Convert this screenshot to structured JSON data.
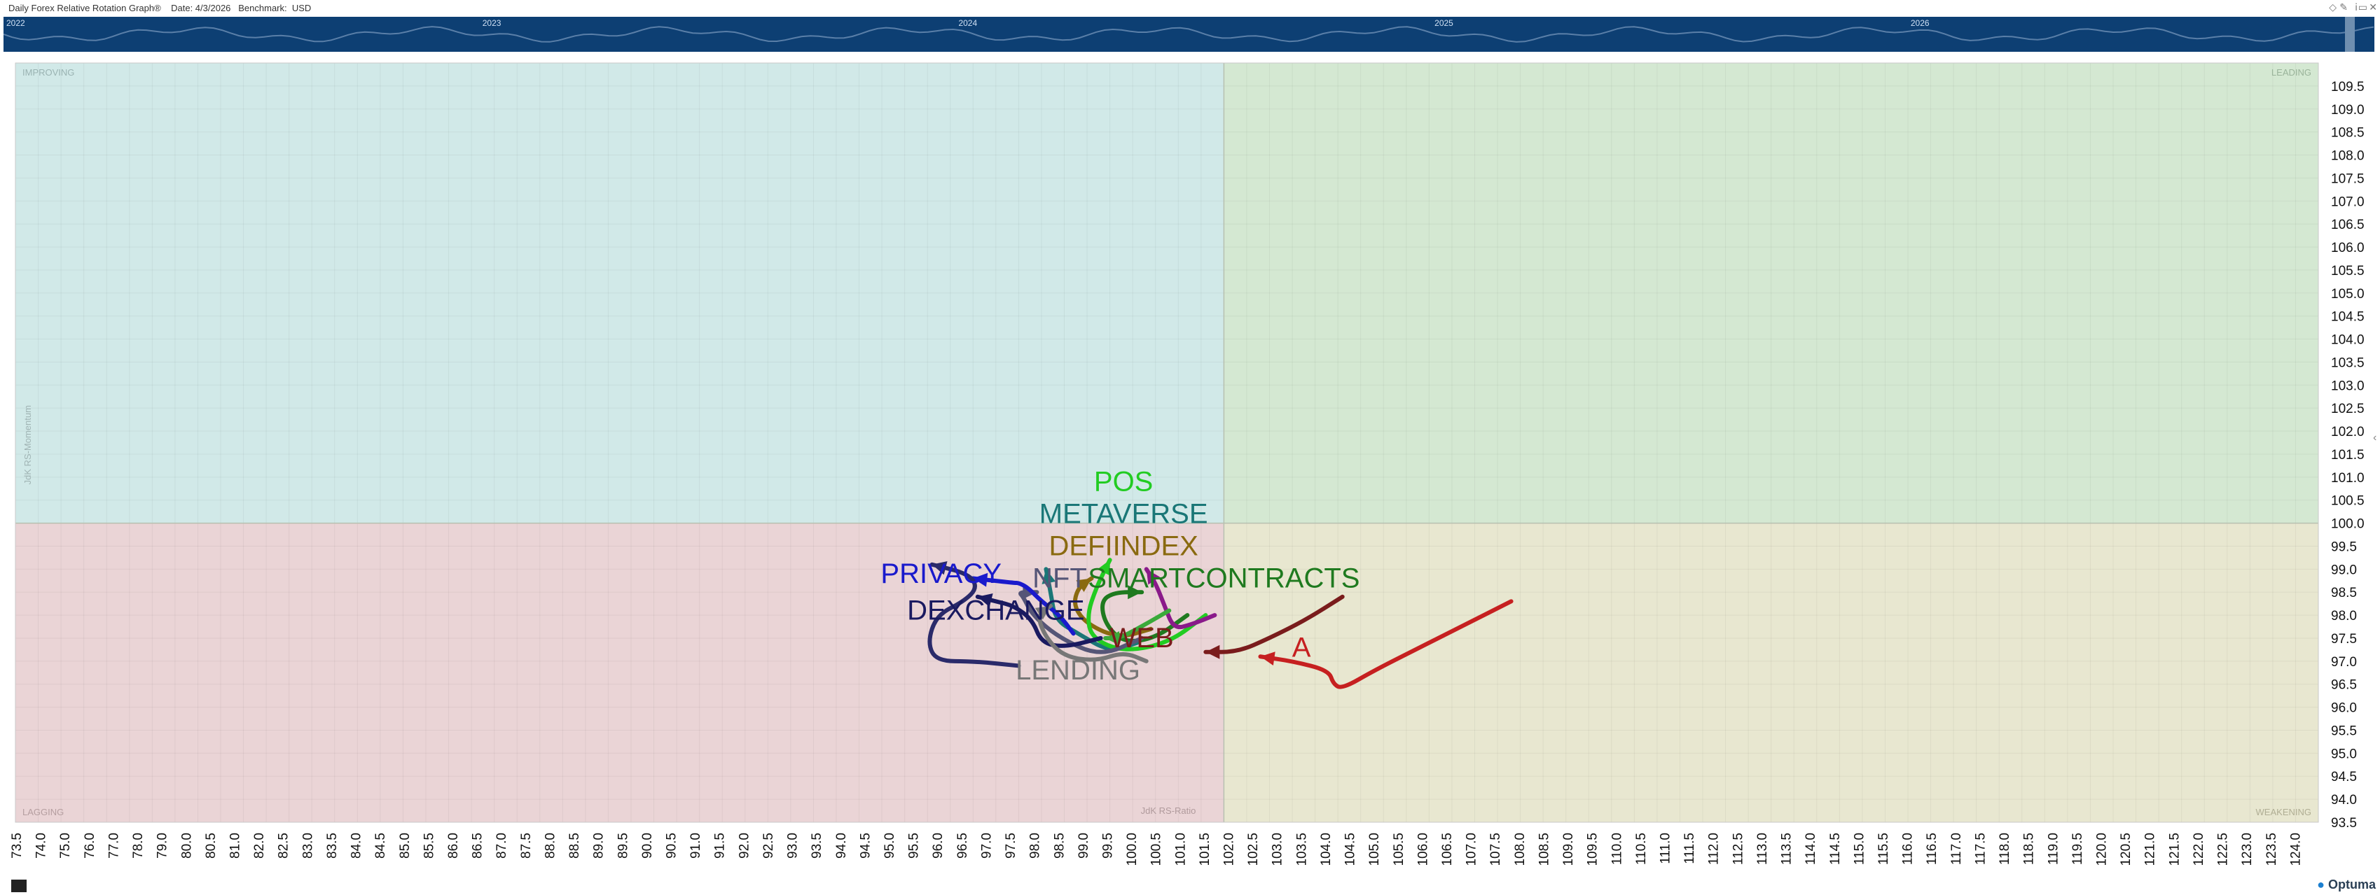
{
  "header": {
    "title": "Daily Forex Relative Rotation Graph®",
    "date_label": "Date: 4/3/2026",
    "benchmark_label": "Benchmark:",
    "benchmark_value": "USD"
  },
  "timeline": {
    "years": [
      "2022",
      "2023",
      "2024",
      "2025",
      "2026"
    ],
    "year_positions": [
      2022.0,
      2023.0,
      2024.0,
      2025.0,
      2026.0
    ]
  },
  "quadrants": {
    "improving": "IMPROVING",
    "leading": "LEADING",
    "lagging": "LAGGING",
    "weakening": "WEAKENING"
  },
  "axis_titles": {
    "y": "JdK RS-Momentum",
    "x": "JdK RS-Ratio"
  },
  "logo_text": "Optuma",
  "colors": {
    "improving": "#d1e9e8",
    "leading": "#d4e8d2",
    "lagging": "#ead4d6",
    "weakening": "#e8e7d0",
    "timeline": "#0d3f73"
  },
  "chart_data": {
    "type": "scatter",
    "xlabel": "JdK RS-Ratio",
    "ylabel": "JdK RS-Momentum",
    "xlim": [
      73.5,
      124.0
    ],
    "ylim": [
      93.5,
      110.0
    ],
    "center": [
      100.0,
      100.0
    ],
    "xticks": [
      73.5,
      74.0,
      75.0,
      76.0,
      77.0,
      78.0,
      79.0,
      80.0,
      80.5,
      81.0,
      82.0,
      82.5,
      83.0,
      83.5,
      84.0,
      84.5,
      85.0,
      85.5,
      86.0,
      86.5,
      87.0,
      87.5,
      88.0,
      88.5,
      89.0,
      89.5,
      90.0,
      90.5,
      91.0,
      91.5,
      92.0,
      92.5,
      93.0,
      93.5,
      94.0,
      94.5,
      95.0,
      95.5,
      96.0,
      96.5,
      97.0,
      97.5,
      98.0,
      98.5,
      99.0,
      99.5,
      100.0,
      100.5,
      101.0,
      101.5,
      102.0,
      102.5,
      103.0,
      103.5,
      104.0,
      104.5,
      105.0,
      105.5,
      106.0,
      106.5,
      107.0,
      107.5,
      108.0,
      108.5,
      109.0,
      109.5,
      110.0,
      110.5,
      111.0,
      111.5,
      112.0,
      112.5,
      113.0,
      113.5,
      114.0,
      114.5,
      115.0,
      115.5,
      116.0,
      116.5,
      117.0,
      117.5,
      118.0,
      118.5,
      119.0,
      119.5,
      120.0,
      120.5,
      121.0,
      121.5,
      122.0,
      122.5,
      123.0,
      123.5,
      124.0
    ],
    "yticks": [
      109.5,
      109.0,
      108.5,
      108.0,
      107.5,
      107.0,
      106.5,
      106.0,
      105.5,
      105.0,
      104.5,
      104.0,
      103.5,
      103.0,
      102.5,
      102.0,
      101.5,
      101.0,
      100.5,
      100.0,
      99.5,
      99.0,
      98.5,
      98.0,
      97.5,
      97.0,
      96.5,
      96.0,
      95.5,
      95.0,
      94.5,
      94.0,
      93.5
    ],
    "series": [
      {
        "name": "A",
        "color": "#c62020",
        "x": [
          106.3,
          105.3,
          104.3,
          103.3,
          102.6,
          102.4,
          102.3,
          101.5,
          100.8
        ],
        "y": [
          98.3,
          97.8,
          97.3,
          96.8,
          96.4,
          96.5,
          96.8,
          97.0,
          97.1
        ],
        "label_x": 101.7,
        "label_y": 97.1
      },
      {
        "name": "WEB",
        "color": "#7a1c1c",
        "x": [
          102.6,
          101.8,
          101.0,
          100.3,
          99.6
        ],
        "y": [
          98.4,
          97.9,
          97.5,
          97.2,
          97.2
        ],
        "label_x": 98.2,
        "label_y": 97.3
      },
      {
        "name": "SMARTCONTRACTS",
        "color": "#1f7a1f",
        "x": [
          99.2,
          98.5,
          97.8,
          97.4,
          97.3,
          97.6,
          98.2
        ],
        "y": [
          98.0,
          97.5,
          97.4,
          97.8,
          98.3,
          98.5,
          98.5
        ],
        "label_x": 100.0,
        "label_y": 98.6
      },
      {
        "name": "DEFIINDEX",
        "color": "#8a6a10",
        "x": [
          98.4,
          97.7,
          97.0,
          96.7,
          96.8,
          97.1
        ],
        "y": [
          97.7,
          97.5,
          97.8,
          98.2,
          98.6,
          98.8
        ],
        "label_x": 97.8,
        "label_y": 99.3
      },
      {
        "name": "METAVERSE",
        "color": "#1a7777",
        "x": [
          98.1,
          97.5,
          96.8,
          96.3,
          96.2,
          96.1
        ],
        "y": [
          97.4,
          97.2,
          97.6,
          97.9,
          98.5,
          99.0
        ],
        "label_x": 97.8,
        "label_y": 100.0
      },
      {
        "name": "POS",
        "color": "#22cc22",
        "x": [
          99.6,
          98.8,
          97.8,
          97.1,
          97.0,
          97.2,
          97.5
        ],
        "y": [
          98.0,
          97.4,
          97.2,
          97.5,
          98.0,
          98.6,
          99.2
        ],
        "label_x": 97.8,
        "label_y": 100.7
      },
      {
        "name": "NFT",
        "color": "#555577",
        "x": [
          98.2,
          97.3,
          96.4,
          95.8,
          95.6,
          95.5,
          95.9
        ],
        "y": [
          97.5,
          97.1,
          97.5,
          98.0,
          98.4,
          98.5,
          98.5
        ],
        "label_x": 96.4,
        "label_y": 98.6
      },
      {
        "name": "DEXCHANGE",
        "color": "#1a1a60",
        "x": [
          97.3,
          96.5,
          96.0,
          95.8,
          95.4,
          95.0,
          94.6
        ],
        "y": [
          97.5,
          97.3,
          97.4,
          97.9,
          98.2,
          98.3,
          98.4
        ],
        "label_x": 95.0,
        "label_y": 97.9
      },
      {
        "name": "PRIVACY",
        "color": "#1a1acc",
        "x": [
          96.7,
          96.4,
          96.0,
          95.7,
          95.5,
          95.4,
          94.5
        ],
        "y": [
          97.6,
          98.0,
          98.3,
          98.6,
          98.7,
          98.7,
          98.8
        ],
        "label_x": 93.8,
        "label_y": 98.7
      },
      {
        "name": "LENDING",
        "color": "#777777",
        "x": [
          98.3,
          97.8,
          97.2,
          96.5,
          96.1,
          95.9,
          96.2
        ],
        "y": [
          97.0,
          97.2,
          97.0,
          97.1,
          97.5,
          98.0,
          98.2
        ],
        "label_x": 96.8,
        "label_y": 96.6
      },
      {
        "name": "",
        "color": "#2a2a6a",
        "x": [
          95.5,
          94.5,
          93.7,
          93.5,
          93.7,
          94.3,
          94.6,
          94.4,
          93.6
        ],
        "y": [
          96.9,
          97.0,
          97.0,
          97.4,
          98.0,
          98.3,
          98.6,
          98.9,
          99.1
        ],
        "label_x": null,
        "label_y": null
      },
      {
        "name": "",
        "color": "#8a1a8a",
        "x": [
          99.8,
          99.3,
          98.9,
          98.7,
          98.5,
          98.3
        ],
        "y": [
          98.0,
          97.8,
          97.7,
          98.2,
          98.7,
          99.0
        ],
        "label_x": null,
        "label_y": null
      },
      {
        "name": "",
        "color": "#3aaa3a",
        "x": [
          98.8,
          98.1,
          97.7,
          97.4
        ],
        "y": [
          98.1,
          97.7,
          97.5,
          97.5
        ],
        "label_x": null,
        "label_y": null
      }
    ]
  }
}
